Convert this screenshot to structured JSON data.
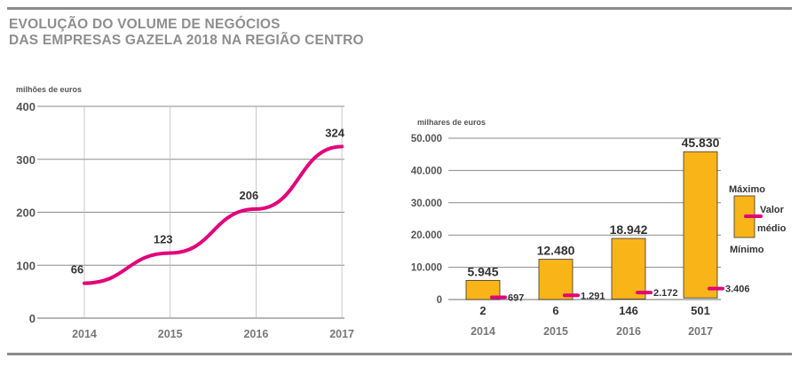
{
  "title": {
    "line1": "EVOLUÇÃO DO VOLUME DE NEGÓCIOS",
    "line2": "DAS EMPRESAS GAZELA 2018 NA REGIÃO CENTRO"
  },
  "colors": {
    "line": "#e2007a",
    "bar": "#f9b418",
    "grid": "#8a8a8a",
    "axis_text": "#555555",
    "rule": "#8a8a8a"
  },
  "chart_data": [
    {
      "type": "line",
      "ylabel": "milhões de euros",
      "x": [
        "2014",
        "2015",
        "2016",
        "2017"
      ],
      "values": [
        66,
        123,
        206,
        324
      ],
      "data_labels": [
        "66",
        "123",
        "206",
        "324"
      ],
      "yticks": [
        "0",
        "100",
        "200",
        "300",
        "400"
      ],
      "ylim": [
        0,
        400
      ],
      "grid": true
    },
    {
      "type": "bar",
      "ylabel": "milhares de euros",
      "categories": [
        "2014",
        "2015",
        "2016",
        "2017"
      ],
      "values": [
        5945,
        12480,
        18942,
        45830
      ],
      "bar_labels": [
        "5.945",
        "12.480",
        "18.942",
        "45.830"
      ],
      "min_values": [
        2,
        6,
        146,
        501
      ],
      "min_labels": [
        "2",
        "6",
        "146",
        "501"
      ],
      "mean_values": [
        697,
        1291,
        2172,
        3406
      ],
      "mean_labels": [
        "697",
        "1.291",
        "2.172",
        "3.406"
      ],
      "yticks": [
        "0",
        "10.000",
        "20.000",
        "30.000",
        "40.000",
        "50.000"
      ],
      "ylim": [
        0,
        50000
      ],
      "grid": true,
      "legend": {
        "max_label": "Máximo",
        "mean_label_1": "Valor",
        "mean_label_2": "médio",
        "min_label": "Mínimo",
        "position": "right"
      }
    }
  ]
}
